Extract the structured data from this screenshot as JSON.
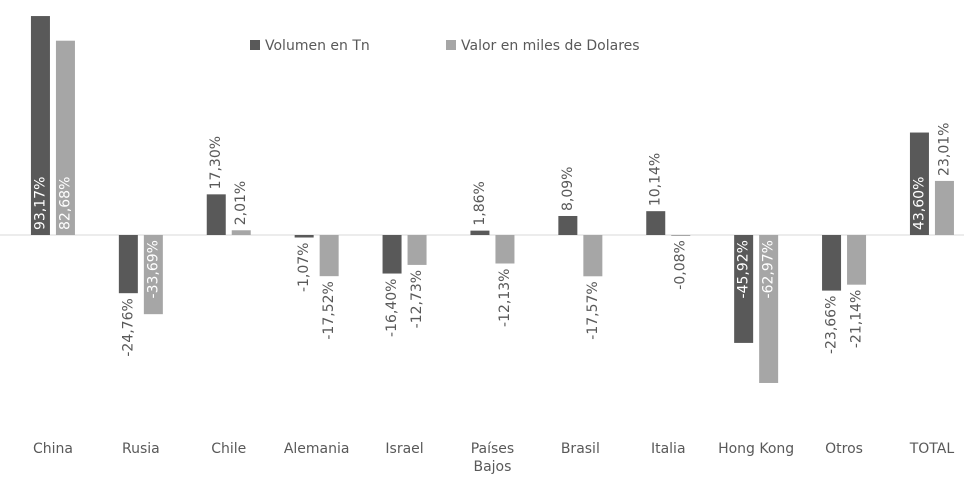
{
  "chart_data": {
    "type": "bar",
    "categories": [
      "China",
      "Rusia",
      "Chile",
      "Alemania",
      "Israel",
      "Países Bajos",
      "Brasil",
      "Italia",
      "Hong Kong",
      "Otros",
      "TOTAL"
    ],
    "series": [
      {
        "name": "Volumen en Tn",
        "color": "#595959",
        "values": [
          93.17,
          -24.76,
          17.3,
          -1.07,
          -16.4,
          1.86,
          8.09,
          10.14,
          -45.92,
          -23.66,
          43.6
        ],
        "value_labels": [
          "93,17%",
          "-24,76%",
          "17,30%",
          "-1,07%",
          "-16,40%",
          "1,86%",
          "8,09%",
          "10,14%",
          "-45,92%",
          "-23,66%",
          "43,60%"
        ]
      },
      {
        "name": "Valor en miles de Dolares",
        "color": "#a6a6a6",
        "values": [
          82.68,
          -33.69,
          2.01,
          -17.52,
          -12.73,
          -12.13,
          -17.57,
          -0.08,
          -62.97,
          -21.14,
          23.01
        ],
        "value_labels": [
          "82,68%",
          "-33,69%",
          "2,01%",
          "-17,52%",
          "-12,73%",
          "-12,13%",
          "-17,57%",
          "-0,08%",
          "-62,97%",
          "-21,14%",
          "23,01%"
        ]
      }
    ],
    "ylim": [
      -80,
      100
    ],
    "legend": "top"
  }
}
